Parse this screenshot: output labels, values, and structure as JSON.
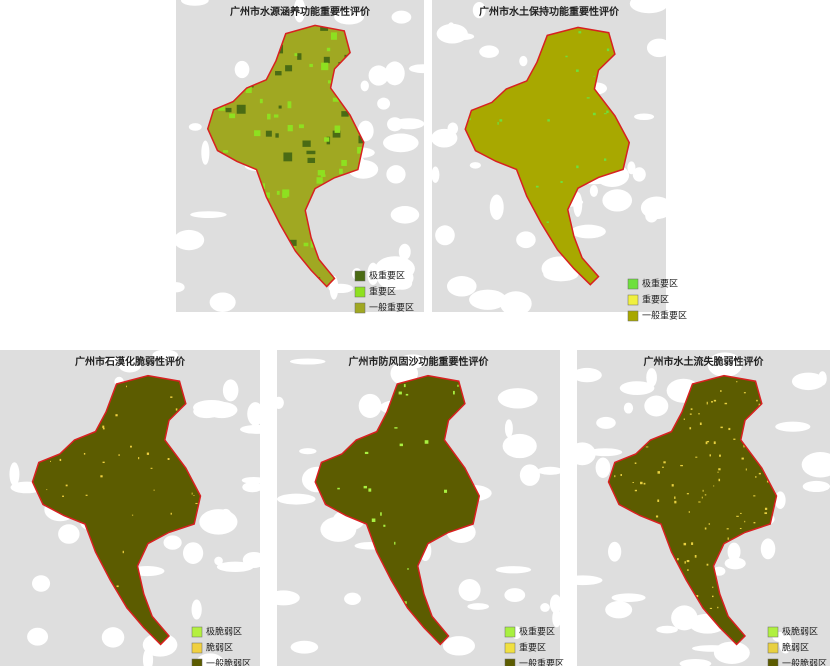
{
  "maps": [
    {
      "title": "广州市水源涵养功能重要性评价",
      "legend": [
        {
          "label": "极重要区",
          "color": "#4a6b14"
        },
        {
          "label": "重要区",
          "color": "#8ee020"
        },
        {
          "label": "一般重要区",
          "color": "#a0a822"
        }
      ]
    },
    {
      "title": "广州市水土保持功能重要性评价",
      "legend": [
        {
          "label": "极重要区",
          "color": "#6ee03c"
        },
        {
          "label": "重要区",
          "color": "#f0f040"
        },
        {
          "label": "一般重要区",
          "color": "#a8a800"
        }
      ]
    },
    {
      "title": "广州市石漠化脆弱性评价",
      "legend": [
        {
          "label": "极脆弱区",
          "color": "#b4f040"
        },
        {
          "label": "脆弱区",
          "color": "#f0d040"
        },
        {
          "label": "一般脆弱区",
          "color": "#5c5c00"
        }
      ]
    },
    {
      "title": "广州市防风固沙功能重要性评价",
      "legend": [
        {
          "label": "极重要区",
          "color": "#a8f040"
        },
        {
          "label": "重要区",
          "color": "#f0e040"
        },
        {
          "label": "一般重要区",
          "color": "#5c5c00"
        }
      ]
    },
    {
      "title": "广州市水土流失脆弱性评价",
      "legend": [
        {
          "label": "极脆弱区",
          "color": "#b0f040"
        },
        {
          "label": "脆弱区",
          "color": "#e8d040"
        },
        {
          "label": "一般脆弱区",
          "color": "#5c5c00"
        }
      ]
    }
  ]
}
